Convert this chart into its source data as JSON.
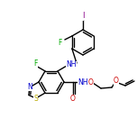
{
  "bg_color": "#ffffff",
  "bond_color": "#000000",
  "atom_colors": {
    "N": "#0000cc",
    "O": "#cc0000",
    "S": "#bbaa00",
    "F": "#00aa00",
    "I": "#880088"
  },
  "figsize": [
    1.52,
    1.52
  ],
  "dpi": 100
}
